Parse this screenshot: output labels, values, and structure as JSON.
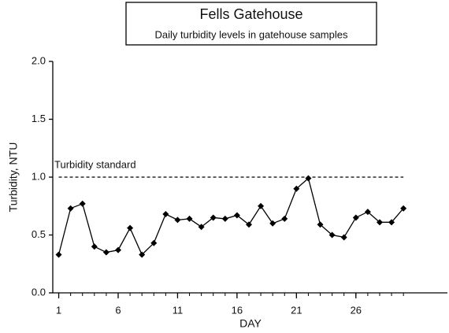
{
  "chart_data": {
    "type": "line",
    "title": "Fells Gatehouse",
    "subtitle": "Daily turbidity levels in gatehouse samples",
    "x_label": "DAY",
    "y_label": "Turbidity, NTU",
    "x": [
      1,
      2,
      3,
      4,
      5,
      6,
      7,
      8,
      9,
      10,
      11,
      12,
      13,
      14,
      15,
      16,
      17,
      18,
      19,
      20,
      21,
      22,
      23,
      24,
      25,
      26,
      27,
      28,
      29,
      30
    ],
    "series": [
      {
        "color": "#000000",
        "values": [
          0.33,
          0.73,
          0.77,
          0.4,
          0.35,
          0.37,
          0.56,
          0.33,
          0.43,
          0.68,
          0.63,
          0.64,
          0.57,
          0.65,
          0.64,
          0.67,
          0.59,
          0.75,
          0.6,
          0.64,
          0.9,
          0.99,
          0.59,
          0.5,
          0.48,
          0.65,
          0.7,
          0.61,
          0.61,
          0.73
        ]
      }
    ],
    "reference_line": {
      "value": 1.0,
      "label": "Turbidity standard"
    },
    "xlim": [
      0.5,
      33.7
    ],
    "xticks": [
      1,
      6,
      11,
      16,
      21,
      26
    ],
    "ylim": [
      0,
      2
    ],
    "yticks": [
      {
        "value": 0,
        "label": "0.0"
      },
      {
        "value": 0.5,
        "label": "0.5"
      },
      {
        "value": 1,
        "label": "1.0"
      },
      {
        "value": 1.5,
        "label": "1.5"
      },
      {
        "value": 2,
        "label": "2.0"
      }
    ],
    "grid": false
  }
}
